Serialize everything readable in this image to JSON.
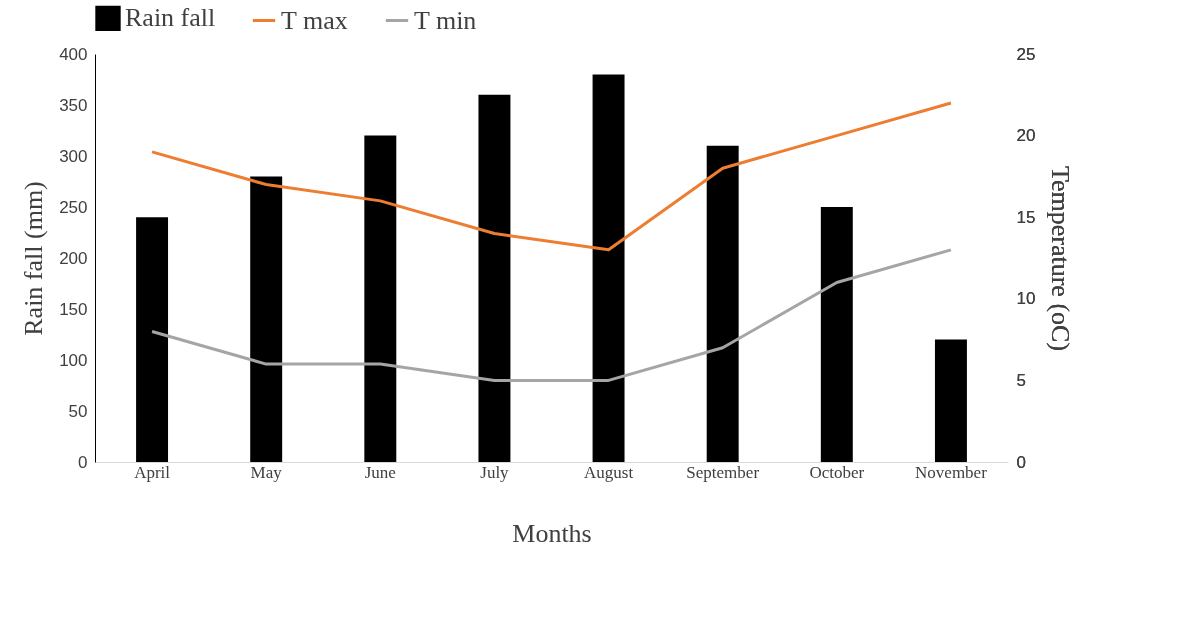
{
  "chart_data": {
    "type": "bar",
    "xlabel": "Months",
    "ylabel": "Rain fall (mm)",
    "y2label": "Temperature (oC)",
    "categories": [
      "April",
      "May",
      "June",
      "July",
      "August",
      "September",
      "October",
      "November"
    ],
    "series": [
      {
        "name": "Rain fall",
        "color": "#000000",
        "values": [
          240,
          280,
          320,
          360,
          380,
          310,
          250,
          120
        ]
      },
      {
        "name": "T max",
        "type": "line",
        "axis": "y2",
        "color": "#ed7d31",
        "values": [
          19,
          17,
          16,
          14,
          13,
          18,
          20,
          22
        ]
      },
      {
        "name": "T min",
        "type": "line",
        "axis": "y2",
        "color": "#a5a5a5",
        "values": [
          8,
          6,
          6,
          5,
          5,
          7,
          11,
          13
        ]
      }
    ],
    "ylim": [
      0,
      400
    ],
    "yticks": [
      0,
      50,
      100,
      150,
      200,
      250,
      300,
      350,
      400
    ],
    "y2lim": [
      0,
      25
    ],
    "y2ticks": [
      0,
      5,
      10,
      15,
      20,
      25
    ],
    "grid": false,
    "legend": "top"
  }
}
